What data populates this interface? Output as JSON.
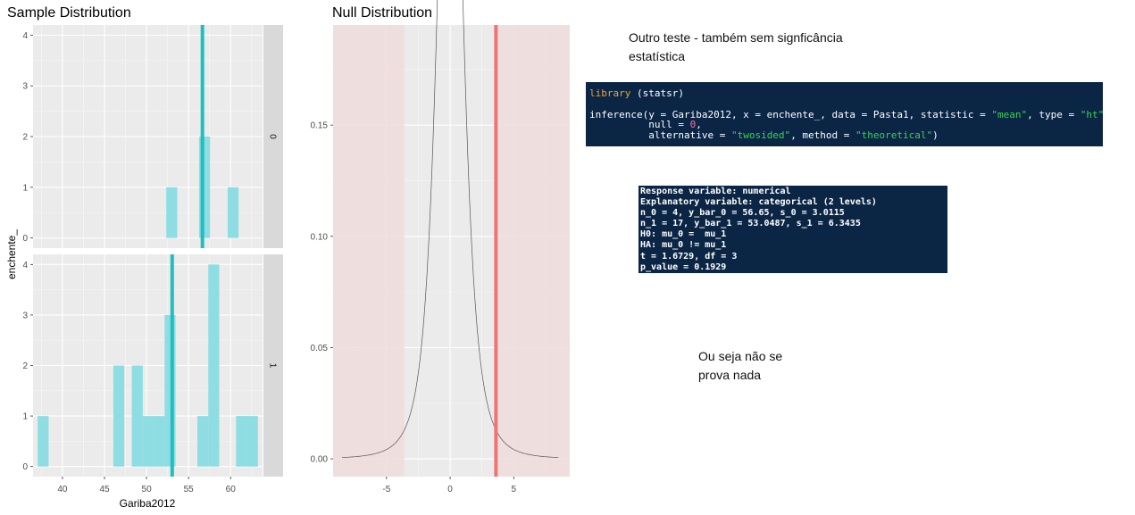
{
  "colors": {
    "panel_bg": "#ebebeb",
    "grid": "#ffffff",
    "bar_fill": "#8ddde3",
    "mean_line": "#1fbfbf",
    "null_band": "#f0dcdc",
    "obs_line": "#ef7574",
    "strip_bg": "#d9d9d9",
    "code_bg": "#0b2545",
    "code_keyword": "#f0a030",
    "code_string": "#39d353",
    "code_number": "#ff6fa0"
  },
  "chart_data": [
    {
      "type": "bar",
      "title": "Sample Distribution",
      "xlabel": "Gariba2012",
      "ylabel": "enchente_",
      "xlim": [
        36.5,
        63.8
      ],
      "ylim": [
        -0.2,
        4.2
      ],
      "x_ticks": [
        40,
        45,
        50,
        55,
        60
      ],
      "x_tick_labels": [
        "40",
        "45",
        "50",
        "55",
        "60"
      ],
      "y_ticks": [
        0,
        1,
        2,
        3,
        4
      ],
      "y_tick_labels": [
        "0",
        "1",
        "2",
        "3",
        "4"
      ],
      "binwidth": 1.3,
      "grid": true,
      "facets": [
        {
          "strip_label": "0",
          "bins": [
            {
              "x": 53.0,
              "count": 1
            },
            {
              "x": 56.9,
              "count": 2
            },
            {
              "x": 60.3,
              "count": 1
            }
          ],
          "mean": 56.65
        },
        {
          "strip_label": "1",
          "bins": [
            {
              "x": 37.7,
              "count": 1
            },
            {
              "x": 46.7,
              "count": 2
            },
            {
              "x": 48.9,
              "count": 2
            },
            {
              "x": 50.2,
              "count": 1
            },
            {
              "x": 51.5,
              "count": 1
            },
            {
              "x": 52.8,
              "count": 3
            },
            {
              "x": 56.7,
              "count": 1
            },
            {
              "x": 58.0,
              "count": 4
            },
            {
              "x": 61.3,
              "count": 1
            },
            {
              "x": 62.6,
              "count": 1
            }
          ],
          "mean": 53.0487
        }
      ]
    },
    {
      "type": "line",
      "title": "Null Distribution",
      "xlim": [
        -9.2,
        9.4
      ],
      "ylim": [
        -0.008,
        0.195
      ],
      "x_ticks": [
        -5,
        0,
        5
      ],
      "x_tick_labels": [
        "-5",
        "0",
        "5"
      ],
      "y_ticks": [
        0.0,
        0.05,
        0.1,
        0.15
      ],
      "y_tick_labels": [
        "0.00",
        "0.05",
        "0.10",
        "0.15"
      ],
      "curve": {
        "distribution": "t",
        "df": 3,
        "x_range": [
          -8.5,
          8.5
        ]
      },
      "observed_statistic": 3.6,
      "shaded_regions": [
        [
          -9.2,
          -3.6
        ],
        [
          3.6,
          9.4
        ]
      ],
      "grid": true
    }
  ],
  "note_top": {
    "line1": "Outro teste - também sem signficância",
    "line2": "estatística"
  },
  "code_block": {
    "lines": [
      [
        {
          "t": "library",
          "c": "kw"
        },
        {
          "t": " (statsr)",
          "c": "pl"
        }
      ],
      [
        {
          "t": " ",
          "c": "pl"
        }
      ],
      [
        {
          "t": "inference(y = Gariba2012, x = enchente_, data = Pasta1, statistic = ",
          "c": "pl"
        },
        {
          "t": "\"mean\"",
          "c": "str"
        },
        {
          "t": ", type = ",
          "c": "pl"
        },
        {
          "t": "\"ht\"",
          "c": "str"
        },
        {
          "t": ",",
          "c": "pl"
        }
      ],
      [
        {
          "t": "          null = ",
          "c": "pl"
        },
        {
          "t": "0",
          "c": "num"
        },
        {
          "t": ",",
          "c": "pl"
        }
      ],
      [
        {
          "t": "          alternative = ",
          "c": "pl"
        },
        {
          "t": "\"twosided\"",
          "c": "str"
        },
        {
          "t": ", method = ",
          "c": "pl"
        },
        {
          "t": "\"theoretical\"",
          "c": "str"
        },
        {
          "t": ")",
          "c": "pl"
        }
      ]
    ]
  },
  "output_block": {
    "lines": [
      "Response variable: numerical",
      "Explanatory variable: categorical (2 levels)",
      "n_0 = 4, y_bar_0 = 56.65, s_0 = 3.0115",
      "n_1 = 17, y_bar_1 = 53.0487, s_1 = 6.3435",
      "H0: mu_0 =  mu_1",
      "HA: mu_0 != mu_1",
      "t = 1.6729, df = 3",
      "p_value = 0.1929"
    ]
  },
  "note_bottom": {
    "line1": "Ou seja não se",
    "line2": "prova nada"
  }
}
